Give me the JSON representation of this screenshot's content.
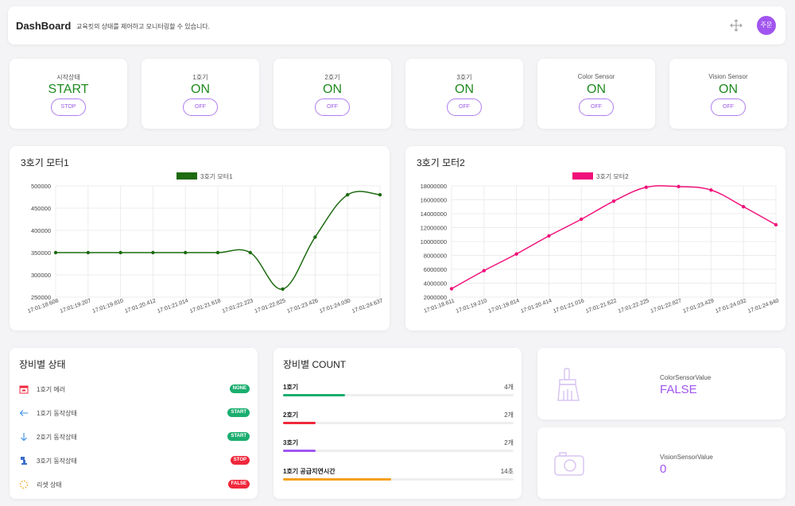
{
  "header": {
    "title": "DashBoard",
    "subtitle": "교육킷의 상태를 제어하고 모니터링할 수 있습니다.",
    "avatar_text": "주문",
    "accent": "#a155f0"
  },
  "status_cards": [
    {
      "label": "시작상태",
      "value": "START",
      "button": "STOP"
    },
    {
      "label": "1호기",
      "value": "ON",
      "button": "OFF"
    },
    {
      "label": "2호기",
      "value": "ON",
      "button": "OFF"
    },
    {
      "label": "3호기",
      "value": "ON",
      "button": "OFF"
    },
    {
      "label": "Color Sensor",
      "value": "ON",
      "button": "OFF"
    },
    {
      "label": "Vision Sensor",
      "value": "ON",
      "button": "OFF"
    }
  ],
  "chart_data": [
    {
      "type": "line",
      "title": "3호기 모터1",
      "legend": "3호기 모터1",
      "color": "#1e6b12",
      "x": [
        "17:01:18.608",
        "17:01:19.207",
        "17:01:19.810",
        "17:01:20.412",
        "17:01:21.014",
        "17:01:21.618",
        "17:01:22.223",
        "17:01:22.825",
        "17:01:23.426",
        "17:01:24.030",
        "17:01:24.637"
      ],
      "series": [
        {
          "name": "3호기 모터1",
          "values": [
            350000,
            350000,
            350000,
            350000,
            350000,
            350000,
            350000,
            268000,
            385000,
            480000,
            480000
          ]
        }
      ],
      "ylim": [
        250000,
        500000
      ],
      "yticks": [
        250000,
        300000,
        350000,
        400000,
        450000,
        500000
      ],
      "grid": true,
      "legend_position": "top"
    },
    {
      "type": "line",
      "title": "3호기 모터2",
      "legend": "3호기 모터2",
      "color": "#f0107a",
      "x": [
        "17:01:18.611",
        "17:01:19.210",
        "17:01:19.814",
        "17:01:20.414",
        "17:01:21.016",
        "17:01:21.622",
        "17:01:22.225",
        "17:01:22.827",
        "17:01:23.429",
        "17:01:24.032",
        "17:01:24.640"
      ],
      "series": [
        {
          "name": "3호기 모터2",
          "values": [
            3200000,
            5800000,
            8200000,
            10800000,
            13200000,
            15800000,
            17800000,
            17900000,
            17400000,
            15000000,
            12400000
          ]
        }
      ],
      "ylim": [
        2000000,
        18000000
      ],
      "yticks": [
        2000000,
        4000000,
        6000000,
        8000000,
        10000000,
        12000000,
        14000000,
        16000000,
        18000000
      ],
      "grid": true,
      "legend_position": "top"
    }
  ],
  "equipment_status": {
    "title": "장비별 상태",
    "items": [
      {
        "icon": "calendar-alert-icon",
        "label": "1호기 에러",
        "badge": "NONE",
        "badge_color": "#1aae6f"
      },
      {
        "icon": "arrow-left-icon",
        "label": "1호기 동작상태",
        "badge": "START",
        "badge_color": "#1aae6f"
      },
      {
        "icon": "arrow-down-icon",
        "label": "2호기 동작상태",
        "badge": "START",
        "badge_color": "#1aae6f"
      },
      {
        "icon": "robot-arm-icon",
        "label": "3호기 동작상태",
        "badge": "STOP",
        "badge_color": "#f0283c"
      },
      {
        "icon": "reset-spinner-icon",
        "label": "리셋 상태",
        "badge": "FALSE",
        "badge_color": "#f0283c"
      }
    ]
  },
  "equipment_count": {
    "title": "장비별 COUNT",
    "items": [
      {
        "label": "1호기",
        "value": "4개",
        "fraction": 0.27,
        "color": "#1aae6f"
      },
      {
        "label": "2호기",
        "value": "2개",
        "fraction": 0.14,
        "color": "#f0283c"
      },
      {
        "label": "3호기",
        "value": "2개",
        "fraction": 0.14,
        "color": "#a155f0"
      },
      {
        "label": "1호기 공급지연시간",
        "value": "14초",
        "fraction": 0.47,
        "color": "#f5a015"
      }
    ]
  },
  "sensors": [
    {
      "icon": "brush-icon",
      "label": "ColorSensorValue",
      "value": "FALSE"
    },
    {
      "icon": "camera-icon",
      "label": "VisionSensorValue",
      "value": "0"
    }
  ]
}
